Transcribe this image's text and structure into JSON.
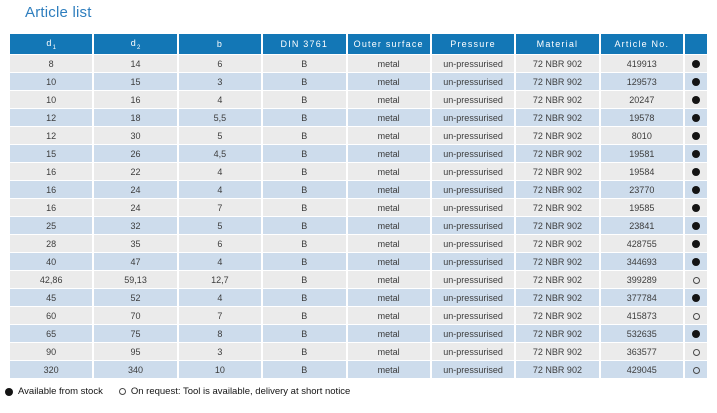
{
  "page": {
    "title": "Article list"
  },
  "colors": {
    "title_blue": "#2e7ebe",
    "header_blue": "#1377b6",
    "row_gray": "#ebebeb",
    "row_blue": "#cddcec",
    "text_dark": "#3c3c3c"
  },
  "table": {
    "columns": [
      {
        "label": "d",
        "sub": "1"
      },
      {
        "label": "d",
        "sub": "2"
      },
      {
        "label": "b",
        "sub": ""
      },
      {
        "label": "DIN 3761",
        "sub": ""
      },
      {
        "label": "Outer surface",
        "sub": ""
      },
      {
        "label": "Pressure",
        "sub": ""
      },
      {
        "label": "Material",
        "sub": ""
      },
      {
        "label": "Article No.",
        "sub": ""
      },
      {
        "label": "",
        "sub": ""
      }
    ],
    "rows": [
      {
        "d1": "8",
        "d2": "14",
        "b": "6",
        "din": "B",
        "outer": "metal",
        "pressure": "un-pressurised",
        "material": "72 NBR 902",
        "article": "419913",
        "stock": "filled"
      },
      {
        "d1": "10",
        "d2": "15",
        "b": "3",
        "din": "B",
        "outer": "metal",
        "pressure": "un-pressurised",
        "material": "72 NBR 902",
        "article": "129573",
        "stock": "filled"
      },
      {
        "d1": "10",
        "d2": "16",
        "b": "4",
        "din": "B",
        "outer": "metal",
        "pressure": "un-pressurised",
        "material": "72 NBR 902",
        "article": "20247",
        "stock": "filled"
      },
      {
        "d1": "12",
        "d2": "18",
        "b": "5,5",
        "din": "B",
        "outer": "metal",
        "pressure": "un-pressurised",
        "material": "72 NBR 902",
        "article": "19578",
        "stock": "filled"
      },
      {
        "d1": "12",
        "d2": "30",
        "b": "5",
        "din": "B",
        "outer": "metal",
        "pressure": "un-pressurised",
        "material": "72 NBR 902",
        "article": "8010",
        "stock": "filled"
      },
      {
        "d1": "15",
        "d2": "26",
        "b": "4,5",
        "din": "B",
        "outer": "metal",
        "pressure": "un-pressurised",
        "material": "72 NBR 902",
        "article": "19581",
        "stock": "filled"
      },
      {
        "d1": "16",
        "d2": "22",
        "b": "4",
        "din": "B",
        "outer": "metal",
        "pressure": "un-pressurised",
        "material": "72 NBR 902",
        "article": "19584",
        "stock": "filled"
      },
      {
        "d1": "16",
        "d2": "24",
        "b": "4",
        "din": "B",
        "outer": "metal",
        "pressure": "un-pressurised",
        "material": "72 NBR 902",
        "article": "23770",
        "stock": "filled"
      },
      {
        "d1": "16",
        "d2": "24",
        "b": "7",
        "din": "B",
        "outer": "metal",
        "pressure": "un-pressurised",
        "material": "72 NBR 902",
        "article": "19585",
        "stock": "filled"
      },
      {
        "d1": "25",
        "d2": "32",
        "b": "5",
        "din": "B",
        "outer": "metal",
        "pressure": "un-pressurised",
        "material": "72 NBR 902",
        "article": "23841",
        "stock": "filled"
      },
      {
        "d1": "28",
        "d2": "35",
        "b": "6",
        "din": "B",
        "outer": "metal",
        "pressure": "un-pressurised",
        "material": "72 NBR 902",
        "article": "428755",
        "stock": "filled"
      },
      {
        "d1": "40",
        "d2": "47",
        "b": "4",
        "din": "B",
        "outer": "metal",
        "pressure": "un-pressurised",
        "material": "72 NBR 902",
        "article": "344693",
        "stock": "filled"
      },
      {
        "d1": "42,86",
        "d2": "59,13",
        "b": "12,7",
        "din": "B",
        "outer": "metal",
        "pressure": "un-pressurised",
        "material": "72 NBR 902",
        "article": "399289",
        "stock": "open"
      },
      {
        "d1": "45",
        "d2": "52",
        "b": "4",
        "din": "B",
        "outer": "metal",
        "pressure": "un-pressurised",
        "material": "72 NBR 902",
        "article": "377784",
        "stock": "filled"
      },
      {
        "d1": "60",
        "d2": "70",
        "b": "7",
        "din": "B",
        "outer": "metal",
        "pressure": "un-pressurised",
        "material": "72 NBR 902",
        "article": "415873",
        "stock": "open"
      },
      {
        "d1": "65",
        "d2": "75",
        "b": "8",
        "din": "B",
        "outer": "metal",
        "pressure": "un-pressurised",
        "material": "72 NBR 902",
        "article": "532635",
        "stock": "filled"
      },
      {
        "d1": "90",
        "d2": "95",
        "b": "3",
        "din": "B",
        "outer": "metal",
        "pressure": "un-pressurised",
        "material": "72 NBR 902",
        "article": "363577",
        "stock": "open"
      },
      {
        "d1": "320",
        "d2": "340",
        "b": "10",
        "din": "B",
        "outer": "metal",
        "pressure": "un-pressurised",
        "material": "72 NBR 902",
        "article": "429045",
        "stock": "open"
      }
    ]
  },
  "legend": {
    "available": "Available from stock",
    "on_request": "On request: Tool is available, delivery at short notice"
  }
}
